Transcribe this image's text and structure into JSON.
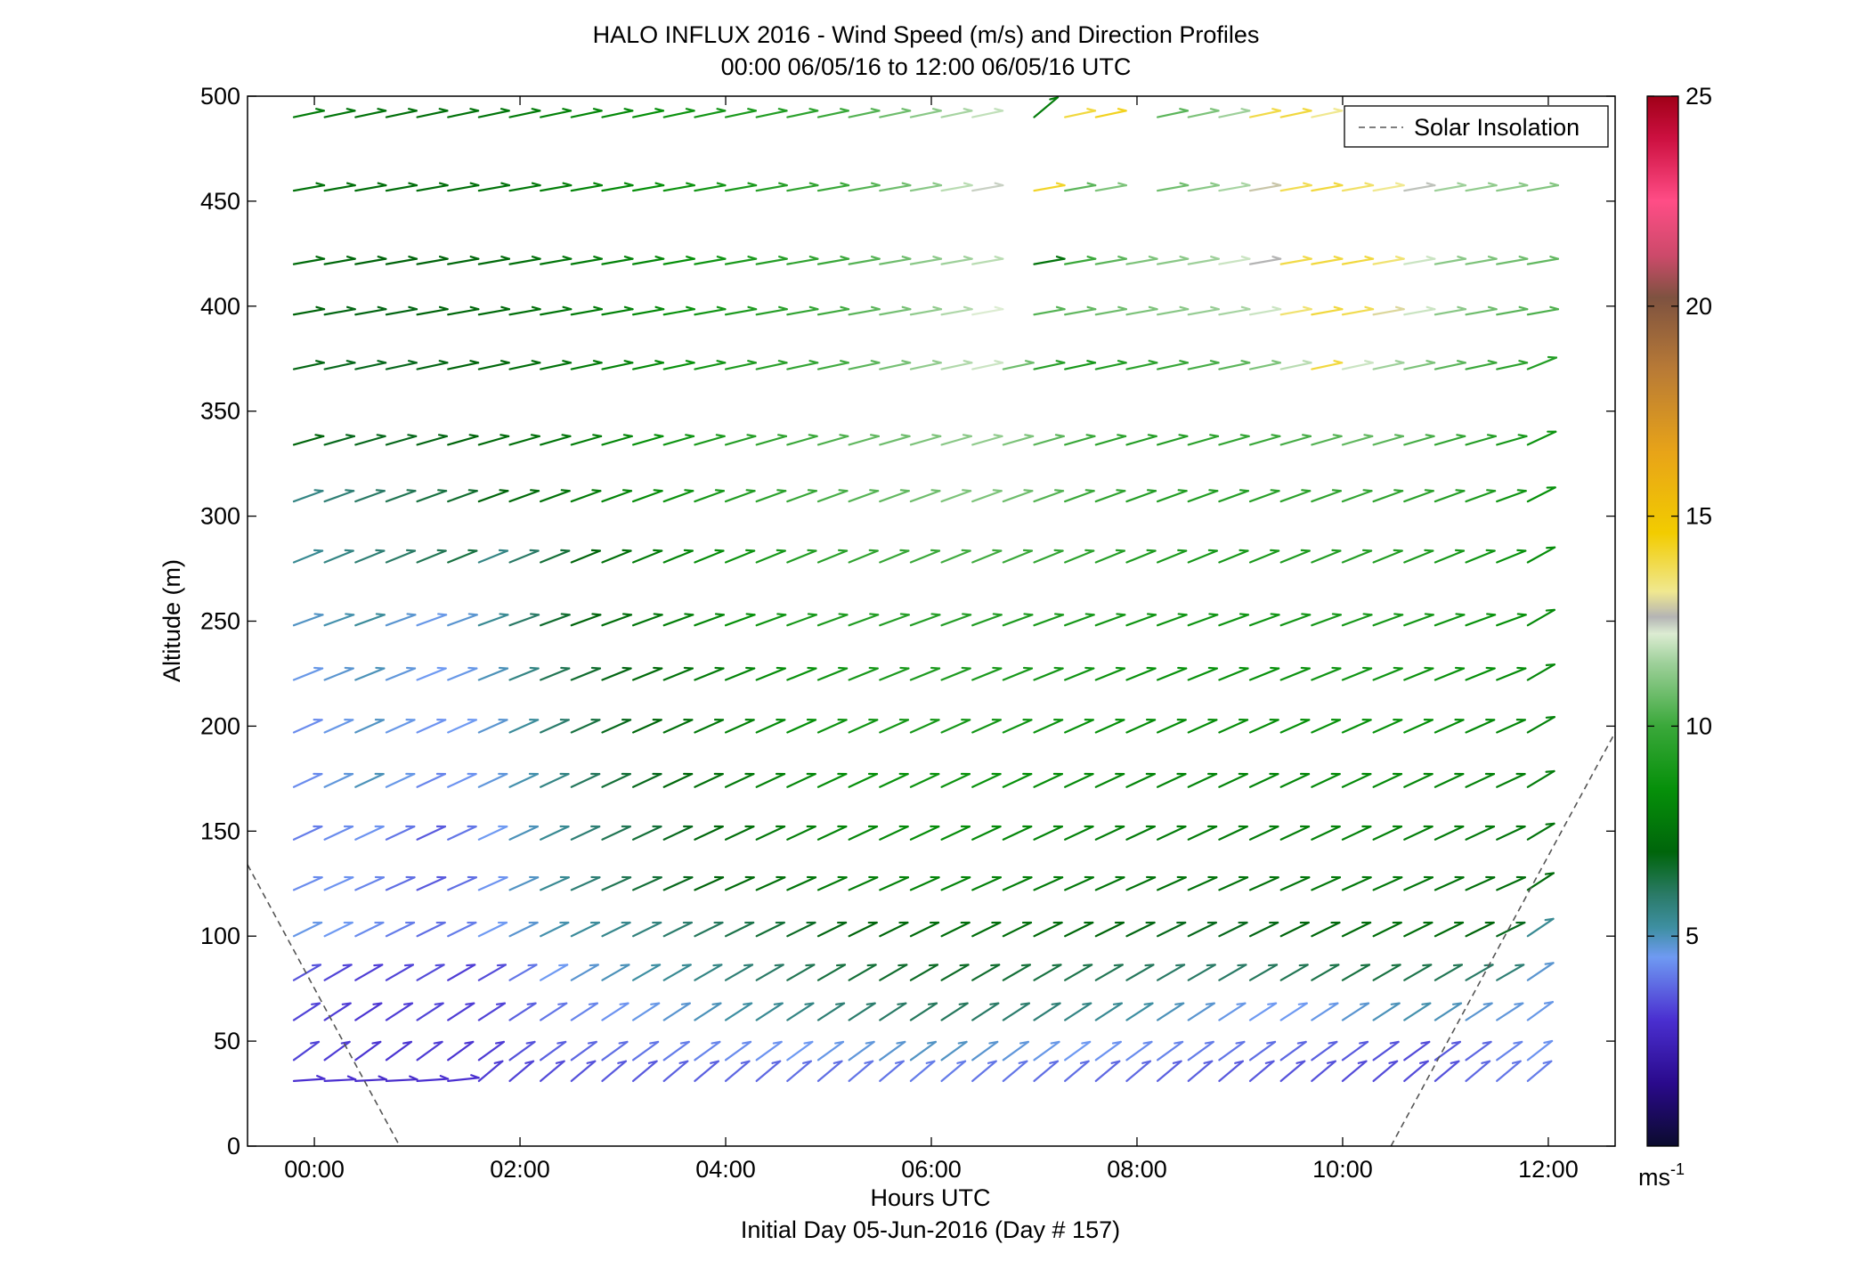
{
  "chart_data": {
    "type": "quiver",
    "title": "HALO INFLUX 2016 - Wind Speed (m/s) and Direction Profiles",
    "subtitle": "00:00 06/05/16 to 12:00 06/05/16  UTC",
    "xlabel": "Hours UTC",
    "xlabel2": "Initial Day 05-Jun-2016 (Day # 157)",
    "ylabel": "Altitude (m)",
    "xlim": [
      -0.65,
      12.65
    ],
    "ylim": [
      0,
      500
    ],
    "x_ticks": [
      0,
      2,
      4,
      6,
      8,
      10,
      12
    ],
    "x_tick_labels": [
      "00:00",
      "02:00",
      "04:00",
      "06:00",
      "08:00",
      "10:00",
      "12:00"
    ],
    "y_ticks": [
      0,
      50,
      100,
      150,
      200,
      250,
      300,
      350,
      400,
      450,
      500
    ],
    "y_tick_labels": [
      "0",
      "50",
      "100",
      "150",
      "200",
      "250",
      "300",
      "350",
      "400",
      "450",
      "500"
    ],
    "grid": false,
    "legend": {
      "position": "top-right",
      "entries": [
        {
          "name": "Solar Insolation",
          "style": "dashed",
          "color": "#555555"
        }
      ]
    },
    "colorbar": {
      "range": [
        0,
        25
      ],
      "ticks": [
        5,
        10,
        15,
        20,
        25
      ],
      "tick_labels": [
        "5",
        "10",
        "15",
        "20",
        "25"
      ],
      "units": "ms",
      "units_exponent": "-1",
      "colormap": [
        [
          0,
          "#0b0b2e"
        ],
        [
          1.5,
          "#2a0a8c"
        ],
        [
          3,
          "#4a2fd0"
        ],
        [
          4.5,
          "#6f9af2"
        ],
        [
          5.2,
          "#3e8fa2"
        ],
        [
          6,
          "#2a7a66"
        ],
        [
          7,
          "#00650b"
        ],
        [
          8.5,
          "#06900a"
        ],
        [
          10,
          "#3aa83a"
        ],
        [
          11.5,
          "#9ed09a"
        ],
        [
          12.2,
          "#dcecd2"
        ],
        [
          12.6,
          "#b4b4b4"
        ],
        [
          13.2,
          "#f0e890"
        ],
        [
          14.6,
          "#f2cc00"
        ],
        [
          16.5,
          "#e8a418"
        ],
        [
          18.5,
          "#b87a36"
        ],
        [
          20.2,
          "#7e5240"
        ],
        [
          21.2,
          "#cc4a6a"
        ],
        [
          22.5,
          "#ff4d86"
        ],
        [
          24,
          "#cc1040"
        ],
        [
          25,
          "#a00018"
        ]
      ]
    },
    "solar_insolation": [
      {
        "x": [
          -0.65,
          0.83
        ],
        "y": [
          134,
          0
        ]
      },
      {
        "x": [
          10.47,
          12.65
        ],
        "y": [
          0,
          197
        ]
      }
    ],
    "arrow_vector_length_hours": 0.3,
    "times": [
      -0.2,
      0.1,
      0.4,
      0.7,
      1.0,
      1.3,
      1.6,
      1.9,
      2.2,
      2.5,
      2.8,
      3.1,
      3.4,
      3.7,
      4.0,
      4.3,
      4.6,
      4.9,
      5.2,
      5.5,
      5.8,
      6.1,
      6.4,
      6.7,
      7.0,
      7.3,
      7.6,
      7.9,
      8.2,
      8.5,
      8.8,
      9.1,
      9.4,
      9.7,
      10.0,
      10.3,
      10.6,
      10.9,
      11.2,
      11.5,
      11.8
    ],
    "levels": [
      {
        "altitude": 490,
        "direction_deg": 12,
        "speeds": [
          7.8,
          7.6,
          7.5,
          7.4,
          7.4,
          7.5,
          7.6,
          7.8,
          8.0,
          8.2,
          8.3,
          8.5,
          8.7,
          8.9,
          9.1,
          9.3,
          9.6,
          10.0,
          10.4,
          10.8,
          11.2,
          11.6,
          11.9,
          null,
          7.8,
          14.0,
          14.3,
          null,
          10.5,
          11.0,
          11.5,
          13.9,
          14.0,
          13.2,
          null,
          null,
          null,
          null,
          null,
          null,
          null
        ],
        "overrides": {
          "24": 40
        }
      },
      {
        "altitude": 455,
        "direction_deg": 10,
        "speeds": [
          7.5,
          7.4,
          7.3,
          7.3,
          7.3,
          7.4,
          7.5,
          7.7,
          7.9,
          8.1,
          8.3,
          8.5,
          8.7,
          8.9,
          9.1,
          9.4,
          9.7,
          10.0,
          10.4,
          10.8,
          11.2,
          11.8,
          12.4,
          null,
          14.2,
          10.5,
          11.0,
          null,
          10.8,
          11.2,
          11.6,
          12.8,
          13.8,
          14.0,
          13.6,
          13.2,
          12.5,
          11.5,
          11.3,
          11.2,
          11.1
        ]
      },
      {
        "altitude": 420,
        "direction_deg": 10,
        "speeds": [
          7.2,
          7.1,
          7.0,
          7.0,
          7.0,
          7.1,
          7.2,
          7.4,
          7.6,
          7.8,
          8.0,
          8.2,
          8.5,
          8.8,
          9.1,
          9.4,
          9.7,
          10.0,
          10.4,
          10.8,
          11.2,
          11.5,
          11.8,
          null,
          7.5,
          10.0,
          10.5,
          11.0,
          11.2,
          11.5,
          12.0,
          12.6,
          13.9,
          14.0,
          14.0,
          13.5,
          12.0,
          11.2,
          11.0,
          10.8,
          10.6
        ]
      },
      {
        "altitude": 396,
        "direction_deg": 10,
        "speeds": [
          7.0,
          6.9,
          6.9,
          6.9,
          7.0,
          7.1,
          7.2,
          7.4,
          7.6,
          7.8,
          8.0,
          8.3,
          8.6,
          8.9,
          9.2,
          9.5,
          9.8,
          10.1,
          10.5,
          10.9,
          11.3,
          11.7,
          12.2,
          null,
          10.4,
          10.6,
          10.8,
          11.0,
          11.2,
          11.4,
          11.6,
          12.0,
          13.5,
          14.0,
          13.8,
          13.0,
          12.0,
          11.2,
          10.8,
          10.5,
          10.3
        ]
      },
      {
        "altitude": 370,
        "direction_deg": 12,
        "speeds": [
          6.9,
          6.8,
          6.8,
          6.8,
          6.9,
          7.0,
          7.1,
          7.3,
          7.5,
          7.8,
          8.0,
          8.3,
          8.6,
          8.9,
          9.2,
          9.5,
          9.8,
          10.1,
          10.5,
          10.9,
          11.3,
          11.7,
          12.0,
          10.8,
          9.5,
          9.0,
          9.3,
          9.6,
          9.9,
          10.2,
          10.5,
          11.0,
          11.8,
          14.0,
          12.0,
          11.5,
          11.0,
          10.5,
          10.0,
          9.6,
          9.3
        ],
        "overrides": {
          "40": 22
        }
      },
      {
        "altitude": 334,
        "direction_deg": 16,
        "speeds": [
          7.0,
          6.8,
          6.8,
          6.8,
          6.9,
          7.0,
          7.2,
          7.4,
          7.6,
          7.9,
          8.2,
          8.5,
          8.8,
          9.1,
          9.4,
          9.7,
          10.0,
          10.3,
          10.6,
          10.8,
          11.0,
          11.2,
          11.3,
          11.0,
          10.5,
          10.0,
          9.6,
          9.4,
          9.4,
          9.6,
          9.8,
          10.0,
          10.2,
          10.4,
          10.6,
          10.5,
          10.2,
          9.8,
          9.4,
          9.0,
          8.7
        ],
        "overrides": {
          "40": 25
        }
      },
      {
        "altitude": 307,
        "direction_deg": 20,
        "speeds": [
          5.6,
          5.8,
          6.0,
          6.2,
          6.4,
          6.6,
          7.0,
          7.2,
          7.5,
          7.8,
          8.1,
          8.4,
          8.7,
          9.0,
          9.3,
          9.6,
          9.9,
          10.2,
          10.4,
          10.6,
          10.8,
          11.0,
          11.0,
          10.8,
          10.4,
          10.0,
          9.7,
          9.4,
          9.3,
          9.3,
          9.4,
          9.5,
          9.6,
          9.7,
          9.8,
          9.7,
          9.6,
          9.4,
          9.2,
          8.8,
          8.5
        ],
        "overrides": {
          "40": 27
        }
      },
      {
        "altitude": 278,
        "direction_deg": 22,
        "speeds": [
          5.4,
          5.6,
          5.8,
          6.0,
          6.2,
          6.4,
          5.6,
          6.0,
          6.5,
          7.0,
          7.4,
          7.8,
          8.1,
          8.4,
          8.7,
          9.0,
          9.3,
          9.5,
          9.7,
          9.9,
          10.0,
          10.1,
          10.1,
          10.0,
          9.8,
          9.6,
          9.4,
          9.2,
          9.1,
          9.0,
          9.0,
          9.1,
          9.2,
          9.3,
          9.4,
          9.3,
          9.2,
          9.0,
          8.8,
          8.6,
          8.4
        ],
        "overrides": {
          "40": 29
        }
      },
      {
        "altitude": 248,
        "direction_deg": 20,
        "speeds": [
          4.9,
          5.1,
          5.3,
          4.8,
          4.6,
          4.8,
          5.4,
          6.0,
          6.6,
          7.0,
          7.3,
          7.6,
          7.9,
          8.2,
          8.5,
          8.8,
          9.0,
          9.2,
          9.3,
          9.4,
          9.4,
          9.4,
          9.3,
          9.2,
          9.1,
          9.0,
          8.9,
          8.8,
          8.8,
          8.8,
          8.8,
          8.8,
          8.9,
          9.0,
          9.0,
          9.0,
          8.9,
          8.8,
          8.6,
          8.5,
          8.3
        ],
        "overrides": {
          "40": 30
        }
      },
      {
        "altitude": 222,
        "direction_deg": 22,
        "speeds": [
          4.6,
          4.8,
          5.0,
          4.7,
          4.5,
          4.6,
          5.0,
          5.6,
          6.2,
          6.6,
          6.9,
          7.2,
          7.5,
          7.8,
          8.1,
          8.4,
          8.6,
          8.8,
          9.0,
          9.1,
          9.2,
          9.2,
          9.1,
          9.0,
          8.9,
          8.8,
          8.7,
          8.6,
          8.6,
          8.6,
          8.6,
          8.6,
          8.7,
          8.8,
          8.8,
          8.8,
          8.7,
          8.6,
          8.5,
          8.4,
          8.2
        ],
        "overrides": {
          "40": 30
        }
      },
      {
        "altitude": 197,
        "direction_deg": 24,
        "speeds": [
          4.3,
          4.6,
          4.9,
          4.6,
          4.4,
          4.5,
          4.8,
          5.3,
          5.9,
          6.4,
          6.8,
          7.1,
          7.4,
          7.7,
          8.0,
          8.3,
          8.5,
          8.7,
          8.8,
          8.9,
          9.0,
          9.0,
          8.9,
          8.8,
          8.7,
          8.6,
          8.5,
          8.4,
          8.4,
          8.4,
          8.4,
          8.4,
          8.5,
          8.6,
          8.6,
          8.6,
          8.5,
          8.4,
          8.3,
          8.2,
          8.0
        ],
        "overrides": {
          "40": 30
        }
      },
      {
        "altitude": 171,
        "direction_deg": 25,
        "speeds": [
          4.3,
          4.7,
          5.0,
          4.6,
          4.2,
          4.4,
          4.7,
          5.1,
          5.6,
          6.1,
          6.5,
          6.8,
          7.1,
          7.4,
          7.7,
          8.0,
          8.2,
          8.4,
          8.5,
          8.6,
          8.7,
          8.7,
          8.6,
          8.5,
          8.4,
          8.3,
          8.2,
          8.1,
          8.1,
          8.1,
          8.1,
          8.1,
          8.2,
          8.3,
          8.3,
          8.3,
          8.2,
          8.1,
          8.0,
          7.9,
          7.8
        ],
        "overrides": {
          "40": 31
        }
      },
      {
        "altitude": 146,
        "direction_deg": 25,
        "speeds": [
          4.1,
          4.3,
          4.4,
          4.0,
          3.6,
          4.0,
          4.5,
          5.0,
          5.4,
          5.8,
          6.2,
          6.5,
          6.8,
          7.1,
          7.4,
          7.7,
          7.9,
          8.1,
          8.2,
          8.3,
          8.4,
          8.4,
          8.3,
          8.2,
          8.1,
          8.0,
          7.9,
          7.8,
          7.8,
          7.8,
          7.8,
          7.8,
          7.9,
          8.0,
          8.0,
          8.0,
          7.9,
          7.8,
          7.7,
          7.6,
          7.5
        ],
        "overrides": {
          "40": 31
        }
      },
      {
        "altitude": 122,
        "direction_deg": 24,
        "speeds": [
          4.3,
          4.4,
          4.2,
          3.9,
          3.6,
          3.9,
          4.4,
          4.9,
          5.4,
          5.8,
          6.2,
          6.5,
          6.8,
          7.0,
          7.2,
          7.4,
          7.6,
          7.8,
          7.9,
          8.0,
          8.1,
          8.1,
          8.0,
          7.9,
          7.8,
          7.7,
          7.6,
          7.5,
          7.5,
          7.5,
          7.5,
          7.5,
          7.6,
          7.7,
          7.7,
          7.7,
          7.6,
          7.5,
          7.4,
          7.3,
          7.2
        ],
        "overrides": {
          "40": 33
        }
      },
      {
        "altitude": 100,
        "direction_deg": 26,
        "speeds": [
          4.6,
          4.5,
          4.3,
          4.1,
          3.9,
          4.1,
          4.5,
          4.8,
          5.1,
          5.3,
          5.5,
          5.7,
          5.9,
          6.1,
          6.3,
          6.5,
          6.7,
          6.9,
          7.0,
          7.1,
          7.2,
          7.3,
          7.3,
          7.3,
          7.2,
          7.1,
          7.0,
          6.9,
          6.8,
          6.8,
          6.8,
          6.9,
          7.0,
          7.1,
          7.2,
          7.3,
          7.3,
          7.2,
          7.0,
          6.8,
          5.4
        ],
        "overrides": {
          "40": 34
        }
      },
      {
        "altitude": 79,
        "direction_deg": 30,
        "speeds": [
          3.5,
          3.3,
          3.2,
          3.3,
          3.4,
          3.2,
          3.4,
          4.0,
          4.5,
          4.8,
          5.0,
          5.2,
          5.4,
          5.6,
          5.8,
          6.0,
          6.2,
          6.4,
          6.5,
          6.6,
          6.7,
          6.7,
          6.6,
          6.5,
          6.4,
          6.3,
          6.2,
          6.1,
          6.0,
          6.0,
          6.0,
          6.1,
          6.2,
          6.3,
          6.4,
          6.4,
          6.3,
          6.2,
          6.0,
          5.8,
          4.8
        ],
        "overrides": {
          "40": 34
        }
      },
      {
        "altitude": 60,
        "direction_deg": 33,
        "speeds": [
          3.3,
          3.2,
          3.1,
          3.2,
          3.3,
          3.2,
          3.3,
          3.7,
          4.0,
          4.2,
          4.4,
          4.6,
          4.8,
          5.0,
          5.2,
          5.4,
          5.6,
          5.8,
          5.9,
          6.0,
          6.1,
          6.1,
          6.0,
          5.9,
          5.8,
          5.6,
          5.4,
          5.2,
          5.0,
          4.8,
          4.6,
          4.5,
          4.5,
          4.6,
          4.8,
          5.0,
          5.1,
          5.0,
          4.8,
          4.7,
          4.6
        ],
        "overrides": {
          "40": 36
        }
      },
      {
        "altitude": 41,
        "direction_deg": 36,
        "speeds": [
          3.3,
          3.2,
          3.1,
          3.1,
          3.2,
          3.1,
          3.2,
          3.5,
          3.7,
          3.8,
          3.9,
          4.0,
          4.1,
          4.2,
          4.3,
          4.4,
          4.5,
          4.6,
          4.7,
          4.8,
          4.9,
          4.9,
          4.8,
          4.7,
          4.6,
          4.5,
          4.4,
          4.3,
          4.2,
          4.1,
          4.0,
          3.9,
          3.8,
          3.7,
          3.6,
          3.5,
          3.4,
          3.6,
          3.8,
          4.2,
          4.4
        ],
        "overrides": {
          "40": 38
        }
      },
      {
        "altitude": 31,
        "direction_deg": 40,
        "speeds": [
          3.0,
          3.0,
          2.9,
          2.9,
          3.0,
          3.0,
          3.2,
          3.3,
          3.4,
          3.5,
          3.6,
          3.6,
          3.7,
          3.7,
          3.8,
          3.8,
          3.9,
          3.9,
          4.0,
          4.0,
          4.1,
          4.1,
          4.0,
          4.0,
          3.9,
          3.9,
          3.8,
          3.8,
          3.7,
          3.7,
          3.6,
          3.6,
          3.5,
          3.5,
          3.4,
          3.4,
          3.4,
          3.5,
          3.8,
          4.0,
          4.1
        ],
        "overrides": {
          "0": 4,
          "1": 3,
          "2": 3,
          "3": 3,
          "4": 4,
          "5": 6
        }
      }
    ]
  }
}
